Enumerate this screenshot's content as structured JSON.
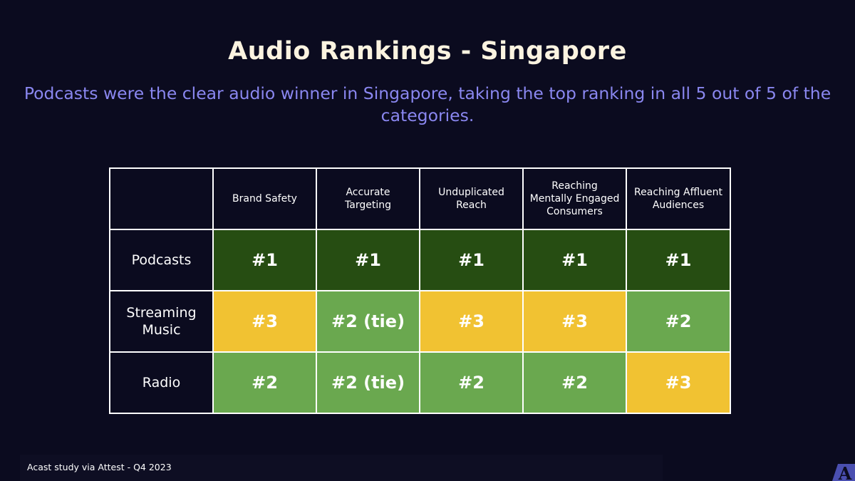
{
  "title": "Audio Rankings - Singapore",
  "subtitle": "Podcasts were the clear audio winner in Singapore, taking the top ranking in all 5 out of 5 of the categories.",
  "colors": {
    "rank_1": "#264d12",
    "rank_2": "#6aa84f",
    "rank_3": "#f1c232"
  },
  "table": {
    "columns": [
      "Brand Safety",
      "Accurate Targeting",
      "Unduplicated Reach",
      "Reaching Mentally Engaged Consumers",
      "Reaching Affluent Audiences"
    ],
    "rows": [
      {
        "label": "Podcasts",
        "cells": [
          {
            "text": "#1",
            "rank": 1
          },
          {
            "text": "#1",
            "rank": 1
          },
          {
            "text": "#1",
            "rank": 1
          },
          {
            "text": "#1",
            "rank": 1
          },
          {
            "text": "#1",
            "rank": 1
          }
        ]
      },
      {
        "label": "Streaming Music",
        "cells": [
          {
            "text": "#3",
            "rank": 3
          },
          {
            "text": "#2 (tie)",
            "rank": 2
          },
          {
            "text": "#3",
            "rank": 3
          },
          {
            "text": "#3",
            "rank": 3
          },
          {
            "text": "#2",
            "rank": 2
          }
        ]
      },
      {
        "label": "Radio",
        "cells": [
          {
            "text": "#2",
            "rank": 2
          },
          {
            "text": "#2 (tie)",
            "rank": 2
          },
          {
            "text": "#2",
            "rank": 2
          },
          {
            "text": "#2",
            "rank": 2
          },
          {
            "text": "#3",
            "rank": 3
          }
        ]
      }
    ]
  },
  "footer": {
    "source": "Acast study via Attest - Q4 2023"
  },
  "logo": {
    "icon": "acast-logo-icon",
    "letter": "A"
  }
}
